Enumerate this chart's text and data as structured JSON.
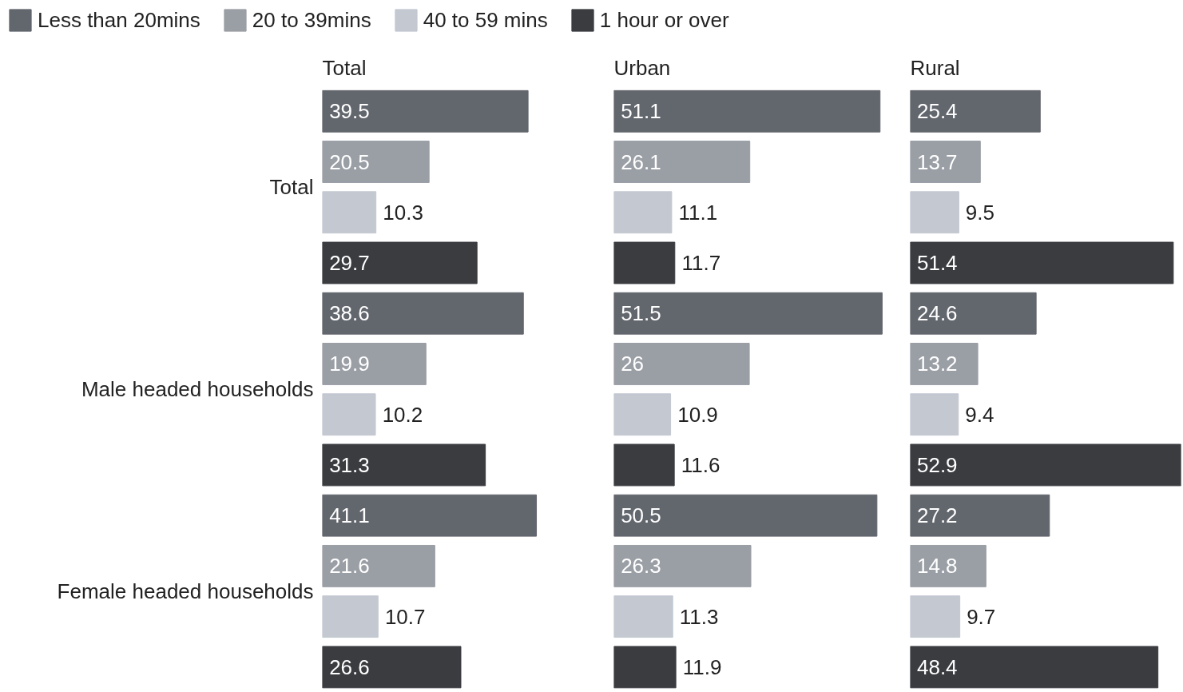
{
  "chart_data": [
    {
      "type": "bar",
      "orientation": "horizontal",
      "title": "Total",
      "categories": [
        "Total",
        "Male headed households",
        "Female headed households"
      ],
      "tick_labels": "y",
      "data_labels": true,
      "legend": "top",
      "grid": false,
      "series": [
        {
          "name": "Less than 20mins",
          "color": "#62666d",
          "values": [
            39.5,
            38.6,
            41.1
          ]
        },
        {
          "name": "20 to 39mins",
          "color": "#9a9ea5",
          "values": [
            20.5,
            19.9,
            21.6
          ]
        },
        {
          "name": "40 to 59 mins",
          "color": "#c3c8d1",
          "values": [
            10.3,
            10.2,
            10.7
          ]
        },
        {
          "name": "1 hour or over",
          "color": "#3a3c40",
          "values": [
            29.7,
            31.3,
            26.6
          ]
        }
      ]
    },
    {
      "type": "bar",
      "orientation": "horizontal",
      "title": "Urban",
      "categories": [
        null,
        null,
        null
      ],
      "tick_labels": false,
      "data_labels": true,
      "grid": false,
      "series": [
        {
          "color": "#62666d",
          "values": [
            51.1,
            51.5,
            50.5
          ]
        },
        {
          "color": "#9a9ea5",
          "values": [
            26.1,
            26,
            26.3
          ]
        },
        {
          "color": "#c3c8d1",
          "values": [
            11.1,
            10.9,
            11.3
          ]
        },
        {
          "color": "#3a3c40",
          "values": [
            11.7,
            11.6,
            11.9
          ]
        }
      ]
    },
    {
      "type": "bar",
      "orientation": "horizontal",
      "title": "Rural",
      "categories": [
        null,
        null,
        null
      ],
      "tick_labels": false,
      "data_labels": true,
      "grid": false,
      "series": [
        {
          "color": "#62666d",
          "values": [
            25.4,
            24.6,
            27.2
          ]
        },
        {
          "color": "#9a9ea5",
          "values": [
            13.7,
            13.2,
            14.8
          ]
        },
        {
          "color": "#c3c8d1",
          "values": [
            9.5,
            9.4,
            9.7
          ]
        },
        {
          "color": "#3a3c40",
          "values": [
            51.4,
            52.9,
            48.4
          ]
        }
      ]
    }
  ]
}
